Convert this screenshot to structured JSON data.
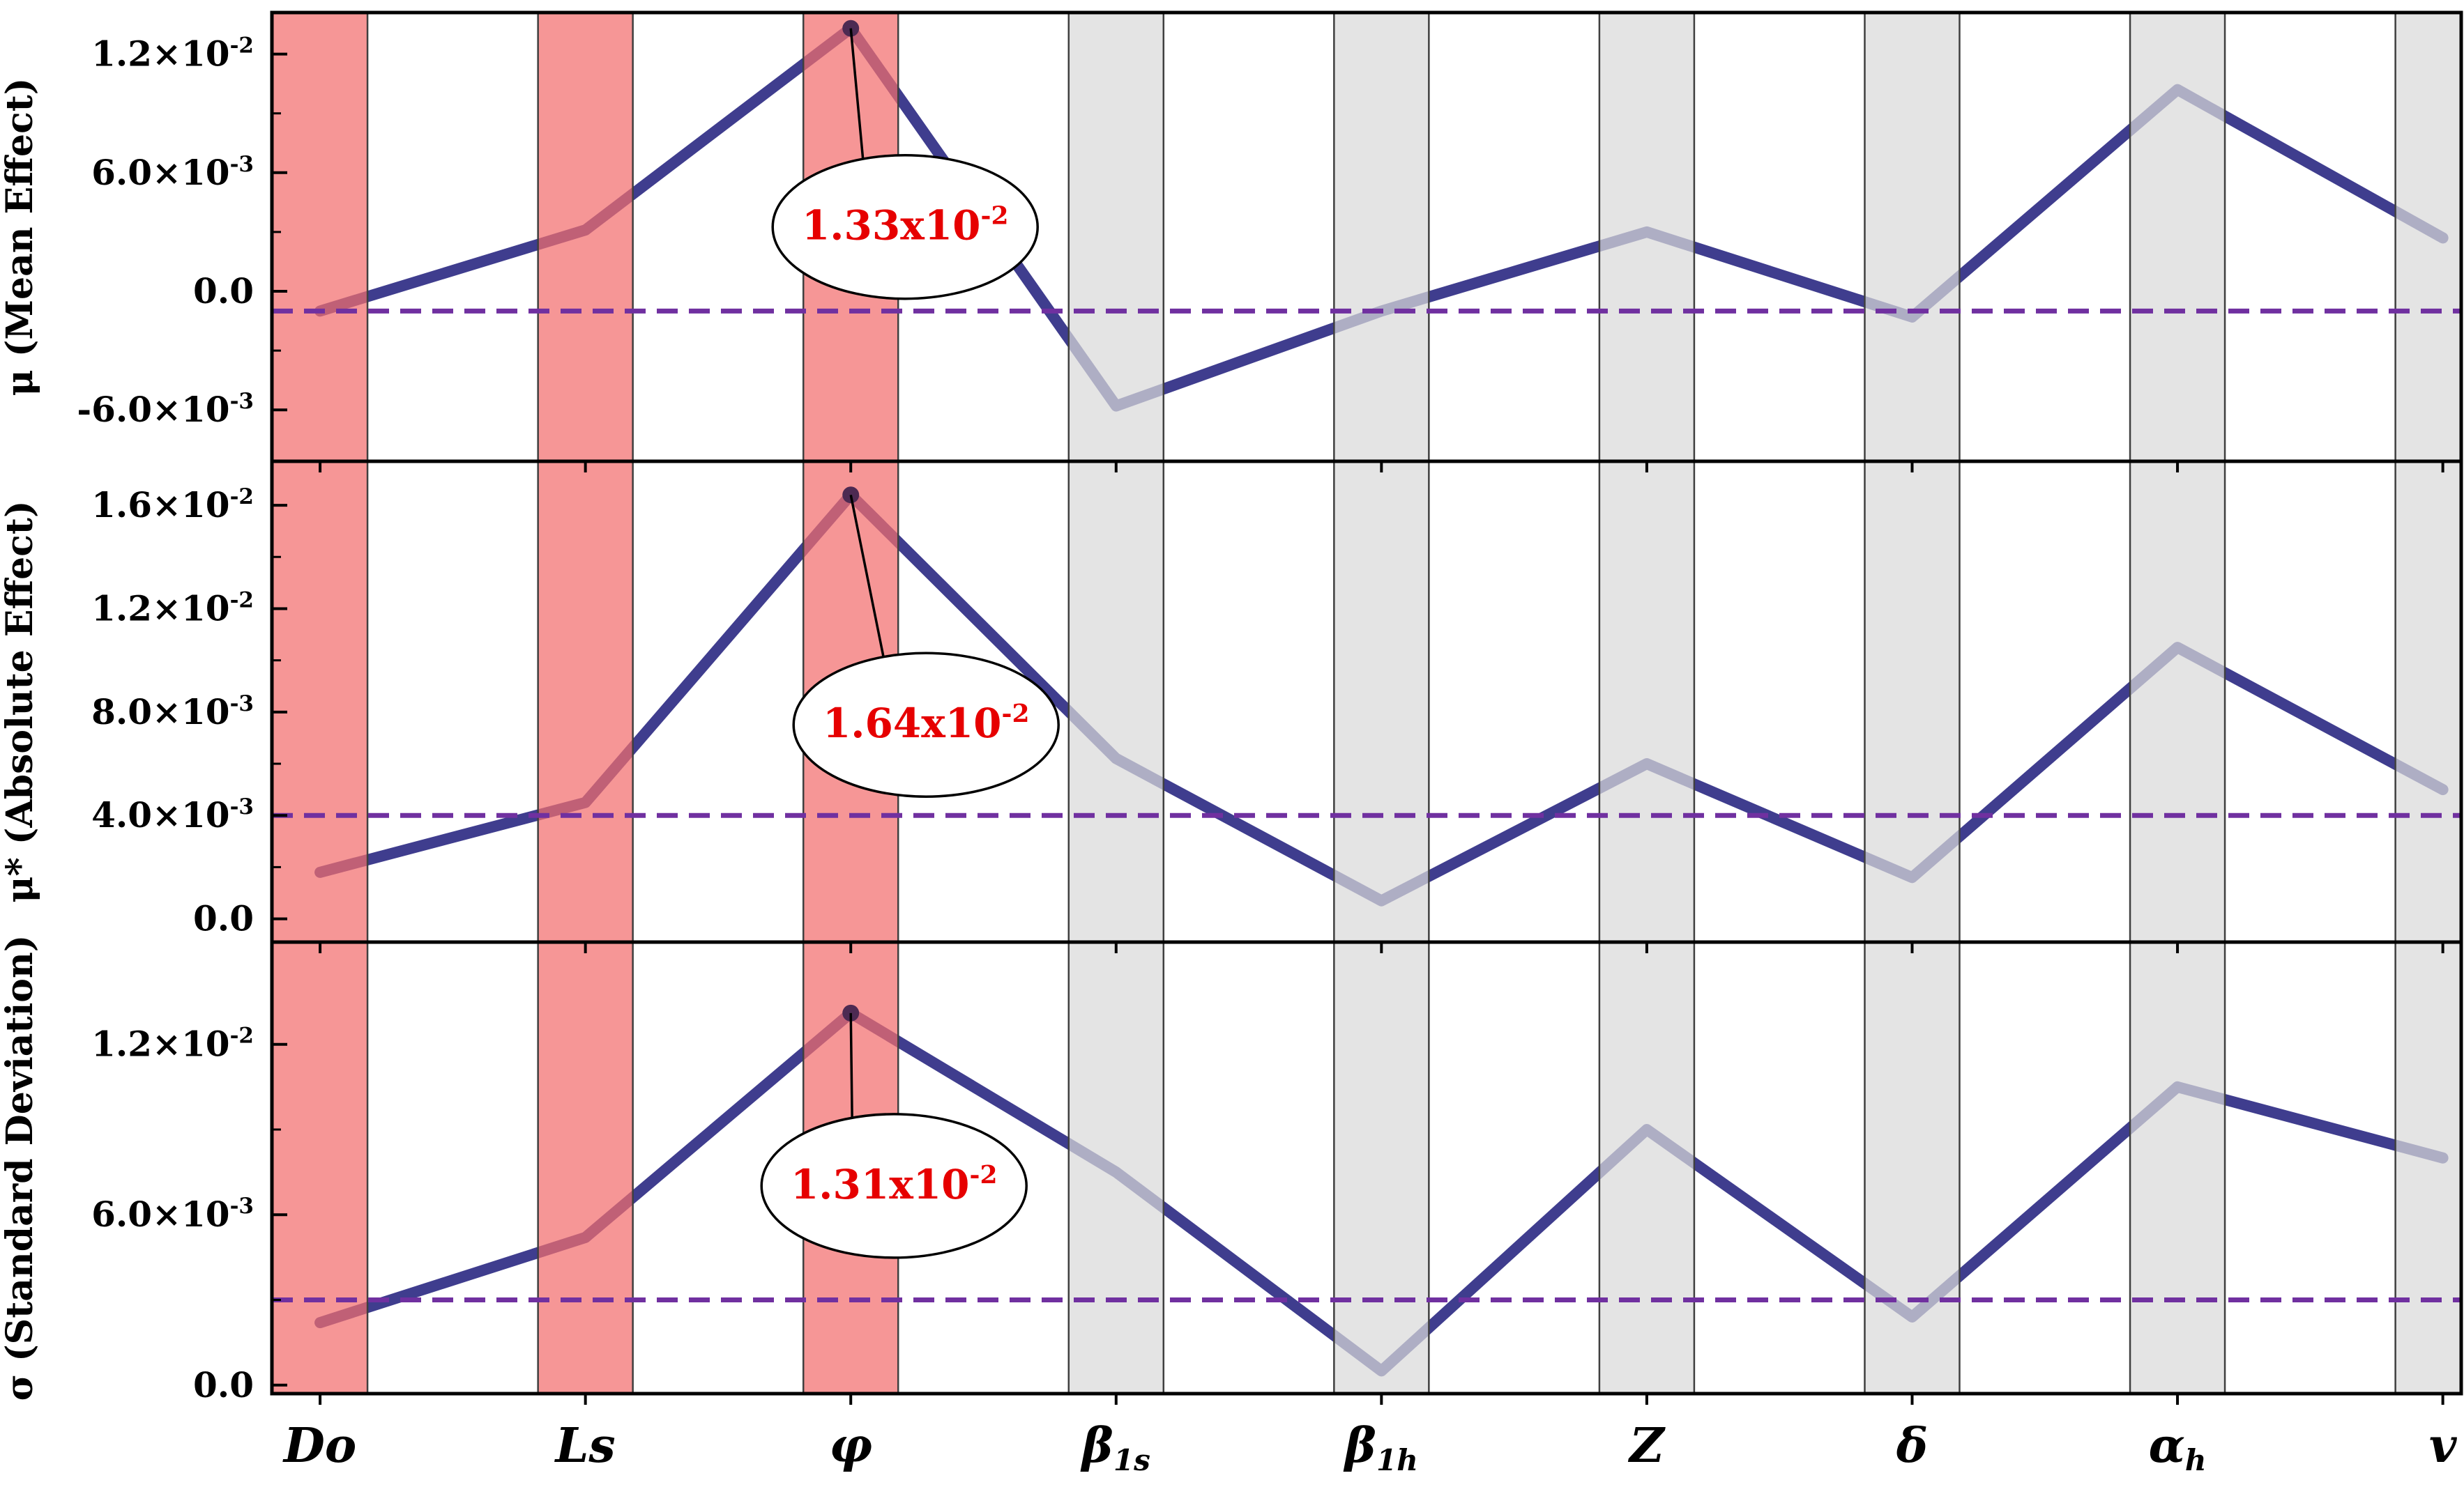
{
  "figure": {
    "background": "#ffffff"
  },
  "chart_data": {
    "type": "line",
    "title": "",
    "categories": [
      "Do",
      "Ls",
      "φ",
      "β_{1s}",
      "β_{1h}",
      "Z",
      "δ",
      "α_{h}",
      "v"
    ],
    "band_types": [
      "red",
      "red",
      "red",
      "gray",
      "gray",
      "gray",
      "gray",
      "gray",
      "gray"
    ],
    "colors": {
      "line": "#3f3d8e",
      "band_red": "#f26d6d",
      "band_gray": "#d9d9d9",
      "band_border": "#3f3f3f",
      "dashed": "#7030a0",
      "annotation_text": "#e60000",
      "peak_dot": "#4d2a52",
      "axis": "#000000"
    },
    "panels": [
      {
        "ylabel": "μ (Mean Effect)",
        "values": [
          -0.001,
          0.0031,
          0.0133,
          -0.0058,
          -0.001,
          0.003,
          -0.0013,
          0.0102,
          0.0027
        ],
        "ylim": [
          -0.0086,
          0.0141
        ],
        "yticks": [
          {
            "v": 0.012,
            "label": "1.2×10^{-2}"
          },
          {
            "v": 0.006,
            "label": "6.0×10^{-3}"
          },
          {
            "v": 0.0,
            "label": "0.0"
          },
          {
            "v": -0.006,
            "label": "-6.0×10^{-3}"
          }
        ],
        "dashed_y": -0.001,
        "annotation": {
          "text": "1.33x10^{-2}",
          "target_index": 2,
          "offset": [
            78,
            285
          ]
        }
      },
      {
        "ylabel": "μ* (Absolute Effect)",
        "values": [
          0.0018,
          0.0045,
          0.0164,
          0.0062,
          0.0007,
          0.006,
          0.0016,
          0.0105,
          0.005
        ],
        "ylim": [
          -0.0009,
          0.0177
        ],
        "yticks": [
          {
            "v": 0.016,
            "label": "1.6×10^{-2}"
          },
          {
            "v": 0.012,
            "label": "1.2×10^{-2}"
          },
          {
            "v": 0.008,
            "label": "8.0×10^{-3}"
          },
          {
            "v": 0.004,
            "label": "4.0×10^{-3}"
          },
          {
            "v": 0.0,
            "label": "0.0"
          }
        ],
        "dashed_y": 0.004,
        "annotation": {
          "text": "1.64x10^{-2}",
          "target_index": 2,
          "offset": [
            108,
            330
          ]
        }
      },
      {
        "ylabel": "σ (Standard Deviation)",
        "values": [
          0.0022,
          0.0052,
          0.0131,
          0.0075,
          0.0005,
          0.009,
          0.0024,
          0.0105,
          0.008
        ],
        "ylim": [
          -0.0003,
          0.0156
        ],
        "yticks": [
          {
            "v": 0.012,
            "label": "1.2×10^{-2}"
          },
          {
            "v": 0.006,
            "label": "6.0×10^{-3}"
          },
          {
            "v": 0.0,
            "label": "0.0"
          }
        ],
        "dashed_y": 0.003,
        "annotation": {
          "text": "1.31x10^{-2}",
          "target_index": 2,
          "offset": [
            62,
            248
          ]
        }
      }
    ],
    "layout": {
      "legend": false,
      "grid": false,
      "xlim_categories": 9,
      "panel_arrangement": "3 stacked rows, shared x axis"
    }
  }
}
